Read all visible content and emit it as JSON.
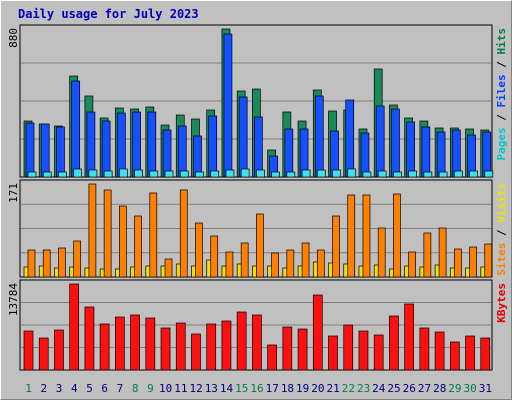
{
  "title": "Daily usage for July 2023",
  "chart_data": [
    {
      "type": "bar",
      "panel": "top",
      "ymax_label": "880",
      "ymax": 880,
      "legend": [
        {
          "text": "Pages",
          "color": "#00c8c8"
        },
        {
          "text": " / ",
          "color": "#000000"
        },
        {
          "text": "Files",
          "color": "#0040ff"
        },
        {
          "text": " / ",
          "color": "#000000"
        },
        {
          "text": "Hits",
          "color": "#008040"
        }
      ],
      "categories": [
        "1",
        "2",
        "3",
        "4",
        "5",
        "6",
        "7",
        "8",
        "9",
        "10",
        "11",
        "12",
        "13",
        "14",
        "15",
        "16",
        "17",
        "18",
        "19",
        "20",
        "21",
        "22",
        "23",
        "24",
        "25",
        "26",
        "27",
        "28",
        "29",
        "30",
        "31"
      ],
      "series": [
        {
          "name": "Hits",
          "color": "#1a8a5a",
          "values": [
            333,
            317,
            302,
            600,
            484,
            353,
            410,
            403,
            415,
            312,
            370,
            347,
            400,
            880,
            512,
            522,
            161,
            387,
            332,
            515,
            390,
            397,
            283,
            640,
            430,
            353,
            330,
            290,
            290,
            285,
            280
          ]
        },
        {
          "name": "Files",
          "color": "#1450ff",
          "values": [
            323,
            317,
            295,
            570,
            387,
            332,
            382,
            387,
            385,
            282,
            302,
            245,
            365,
            850,
            477,
            355,
            124,
            285,
            285,
            482,
            275,
            455,
            260,
            420,
            405,
            325,
            300,
            265,
            280,
            250,
            265
          ]
        },
        {
          "name": "Pages",
          "color": "#40e0f0",
          "values": [
            31,
            31,
            31,
            45,
            40,
            36,
            45,
            40,
            38,
            38,
            34,
            30,
            37,
            43,
            45,
            41,
            31,
            31,
            41,
            42,
            39,
            45,
            31,
            38,
            31,
            35,
            31,
            27,
            38,
            38,
            35
          ]
        }
      ]
    },
    {
      "type": "bar",
      "panel": "middle",
      "ymax_label": "171",
      "ymax": 171,
      "legend": [
        {
          "text": "Sites",
          "color": "#ff8000"
        },
        {
          "text": " / ",
          "color": "#000000"
        },
        {
          "text": "Visits",
          "color": "#e8e800"
        }
      ],
      "categories": [
        "1",
        "2",
        "3",
        "4",
        "5",
        "6",
        "7",
        "8",
        "9",
        "10",
        "11",
        "12",
        "13",
        "14",
        "15",
        "16",
        "17",
        "18",
        "19",
        "20",
        "21",
        "22",
        "23",
        "24",
        "25",
        "26",
        "27",
        "28",
        "29",
        "30",
        "31"
      ],
      "series": [
        {
          "name": "Visits",
          "color": "#f0e000",
          "values": [
            18,
            20,
            16,
            18,
            17,
            15,
            15,
            19,
            20,
            20,
            23,
            20,
            31,
            21,
            23,
            21,
            20,
            16,
            21,
            27,
            25,
            23,
            20,
            22,
            14,
            21,
            19,
            22,
            17,
            16,
            18
          ]
        },
        {
          "name": "Sites",
          "color": "#ff8000",
          "values": [
            50,
            50,
            53,
            66,
            171,
            160,
            130,
            113,
            155,
            34,
            160,
            100,
            76,
            46,
            62,
            116,
            44,
            50,
            63,
            50,
            113,
            150,
            150,
            91,
            152,
            46,
            80,
            90,
            51,
            56,
            60
          ]
        }
      ]
    },
    {
      "type": "bar",
      "panel": "bottom",
      "ymax_label": "13784",
      "ymax": 13784,
      "legend": [
        {
          "text": "KBytes",
          "color": "#e00000"
        }
      ],
      "categories": [
        "1",
        "2",
        "3",
        "4",
        "5",
        "6",
        "7",
        "8",
        "9",
        "10",
        "11",
        "12",
        "13",
        "14",
        "15",
        "16",
        "17",
        "18",
        "19",
        "20",
        "21",
        "22",
        "23",
        "24",
        "25",
        "26",
        "27",
        "28",
        "29",
        "30",
        "31"
      ],
      "series": [
        {
          "name": "KBytes",
          "color": "#ff1010",
          "values": [
            6300,
            5200,
            6400,
            13784,
            10100,
            7400,
            8500,
            8800,
            8300,
            6700,
            7600,
            5800,
            7300,
            7900,
            9300,
            8800,
            4000,
            6900,
            6600,
            12000,
            5400,
            7200,
            6200,
            5600,
            8700,
            10600,
            6800,
            6100,
            4500,
            5500,
            5200
          ]
        }
      ]
    }
  ],
  "x_label_colors": {
    "weekday": "#000080",
    "weekend": "#008040"
  },
  "weekend_days": [
    1,
    8,
    9,
    15,
    16,
    22,
    23,
    29,
    30
  ]
}
